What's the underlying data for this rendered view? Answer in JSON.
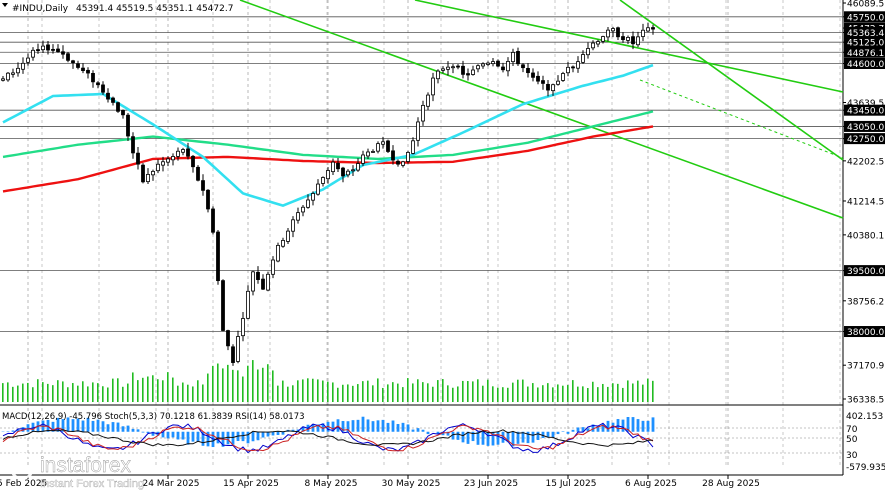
{
  "header": {
    "symbol": "#INDU,Daily",
    "ohlc": "45391.4 45519.5 45351.1 45472.7",
    "indicator_label": "MACD(12,26,9) -45.796   Stoch(5,3,3) 70.1218 61.3839   RSI(14) 58.0173"
  },
  "logo": {
    "brand": "instaforex",
    "tagline": "Instant Forex Trading"
  },
  "colors": {
    "background": "#ffffff",
    "candle": "#000000",
    "ema_fast": "#33e0f0",
    "ema_mid": "#22dd88",
    "ema_slow": "#ee1111",
    "channel": "#22cc11",
    "volume": "#22bb22",
    "macd_hist": "#1e90ff",
    "stoch_main": "#0000cc",
    "stoch_signal": "#cc2222",
    "rsi": "#111111",
    "price_tag_bg": "#000000"
  },
  "chart_data": {
    "type": "candlestick",
    "title": "#INDU,Daily",
    "ylim": [
      36338.5,
      46089.5
    ],
    "y_axis_labels": [
      {
        "value": 46089.5,
        "label": "46089.5"
      },
      {
        "value": 45750.0,
        "label": "45750.0",
        "tag": true
      },
      {
        "value": 45472.7,
        "label": "45472.7",
        "tag": true,
        "current": true
      },
      {
        "value": 45363.4,
        "label": "45363.4",
        "tag": true
      },
      {
        "value": 45125.0,
        "label": "45125.0",
        "tag": true
      },
      {
        "value": 44876.1,
        "label": "44876.1",
        "tag": true
      },
      {
        "value": 44600.0,
        "label": "44600.0",
        "tag": true
      },
      {
        "value": 43639.5,
        "label": "43639.5"
      },
      {
        "value": 43450.0,
        "label": "43450.0",
        "tag": true
      },
      {
        "value": 43050.0,
        "label": "43050.0",
        "tag": true
      },
      {
        "value": 42750.0,
        "label": "42750.0",
        "tag": true
      },
      {
        "value": 42202.5,
        "label": "42202.5"
      },
      {
        "value": 41214.5,
        "label": "41214.5"
      },
      {
        "value": 40380.1,
        "label": "40380.1"
      },
      {
        "value": 39500.0,
        "label": "39500.0",
        "tag": true
      },
      {
        "value": 38756.2,
        "label": "38756.2"
      },
      {
        "value": 38000.0,
        "label": "38000.0",
        "tag": true
      },
      {
        "value": 37170.9,
        "label": "37170.9"
      },
      {
        "value": 36338.5,
        "label": "36338.5"
      }
    ],
    "horizontal_levels": [
      45750.0,
      45363.4,
      45125.0,
      44876.1,
      44600.0,
      43450.0,
      43050.0,
      42750.0,
      39500.0,
      38000.0
    ],
    "x_labels": [
      {
        "index": 0,
        "label": "5 Feb 2025"
      },
      {
        "index": 28,
        "label": "24 Mar 2025"
      },
      {
        "index": 44,
        "label": "15 Apr 2025"
      },
      {
        "index": 60,
        "label": "8 May 2025"
      },
      {
        "index": 76,
        "label": "30 May 2025"
      },
      {
        "index": 92,
        "label": "23 Jun 2025"
      },
      {
        "index": 108,
        "label": "15 Jul 2025"
      },
      {
        "index": 124,
        "label": "6 Aug 2025"
      },
      {
        "index": 140,
        "label": "28 Aug 2025"
      }
    ],
    "key_closes": [
      [
        0,
        44200
      ],
      [
        3,
        44500
      ],
      [
        6,
        44850
      ],
      [
        9,
        45000
      ],
      [
        12,
        44850
      ],
      [
        15,
        44500
      ],
      [
        18,
        44200
      ],
      [
        21,
        43800
      ],
      [
        24,
        43300
      ],
      [
        26,
        42400
      ],
      [
        28,
        41700
      ],
      [
        31,
        42100
      ],
      [
        34,
        42300
      ],
      [
        36,
        42500
      ],
      [
        38,
        42000
      ],
      [
        40,
        41500
      ],
      [
        42,
        40500
      ],
      [
        44,
        38000
      ],
      [
        46,
        37300
      ],
      [
        48,
        38400
      ],
      [
        50,
        39500
      ],
      [
        52,
        39100
      ],
      [
        54,
        39800
      ],
      [
        56,
        40300
      ],
      [
        58,
        40700
      ],
      [
        60,
        41100
      ],
      [
        62,
        41400
      ],
      [
        64,
        41800
      ],
      [
        66,
        42200
      ],
      [
        68,
        41800
      ],
      [
        70,
        42000
      ],
      [
        72,
        42300
      ],
      [
        74,
        42500
      ],
      [
        76,
        42600
      ],
      [
        78,
        42300
      ],
      [
        80,
        42100
      ],
      [
        82,
        42700
      ],
      [
        84,
        43600
      ],
      [
        86,
        44200
      ],
      [
        88,
        44500
      ],
      [
        90,
        44600
      ],
      [
        92,
        44300
      ],
      [
        94,
        44400
      ],
      [
        96,
        44600
      ],
      [
        98,
        44700
      ],
      [
        100,
        44500
      ],
      [
        102,
        44800
      ],
      [
        104,
        44500
      ],
      [
        106,
        44200
      ],
      [
        108,
        44050
      ],
      [
        110,
        44000
      ],
      [
        112,
        44400
      ],
      [
        114,
        44500
      ],
      [
        116,
        44900
      ],
      [
        118,
        45100
      ],
      [
        120,
        45300
      ],
      [
        122,
        45400
      ],
      [
        124,
        45250
      ],
      [
        126,
        45100
      ],
      [
        128,
        45350
      ],
      [
        130,
        45472.7
      ]
    ],
    "ema_fast_keys": [
      [
        0,
        43150
      ],
      [
        10,
        43800
      ],
      [
        20,
        43850
      ],
      [
        30,
        43100
      ],
      [
        40,
        42300
      ],
      [
        48,
        41400
      ],
      [
        56,
        41100
      ],
      [
        64,
        41500
      ],
      [
        72,
        42100
      ],
      [
        82,
        42350
      ],
      [
        92,
        42900
      ],
      [
        104,
        43600
      ],
      [
        116,
        44050
      ],
      [
        124,
        44300
      ],
      [
        130,
        44560
      ]
    ],
    "ema_mid_keys": [
      [
        0,
        42300
      ],
      [
        15,
        42600
      ],
      [
        30,
        42800
      ],
      [
        45,
        42600
      ],
      [
        60,
        42350
      ],
      [
        75,
        42250
      ],
      [
        90,
        42350
      ],
      [
        105,
        42650
      ],
      [
        118,
        43050
      ],
      [
        130,
        43420
      ]
    ],
    "ema_slow_keys": [
      [
        0,
        41450
      ],
      [
        15,
        41750
      ],
      [
        30,
        42250
      ],
      [
        45,
        42300
      ],
      [
        60,
        42200
      ],
      [
        75,
        42150
      ],
      [
        90,
        42180
      ],
      [
        105,
        42450
      ],
      [
        118,
        42800
      ],
      [
        130,
        43050
      ]
    ],
    "channel_lines": [
      {
        "from": [
          240,
          0
        ],
        "to": [
          843,
          218
        ]
      },
      {
        "from": [
          415,
          0
        ],
        "to": [
          843,
          92
        ]
      },
      {
        "from": [
          620,
          0
        ],
        "to": [
          843,
          160
        ]
      }
    ],
    "dashed_line": {
      "from": [
        640,
        80
      ],
      "to": [
        843,
        158
      ]
    },
    "volume_note": "volume histogram along bottom of main pane",
    "oscillator_pane": {
      "labels": [
        {
          "value": 402.153,
          "label": "402.153"
        },
        {
          "value": 70,
          "label": "70"
        },
        {
          "value": 50,
          "label": "50"
        },
        {
          "value": 30,
          "label": "30"
        },
        {
          "value": -579.935,
          "label": "-579.935"
        }
      ]
    }
  }
}
